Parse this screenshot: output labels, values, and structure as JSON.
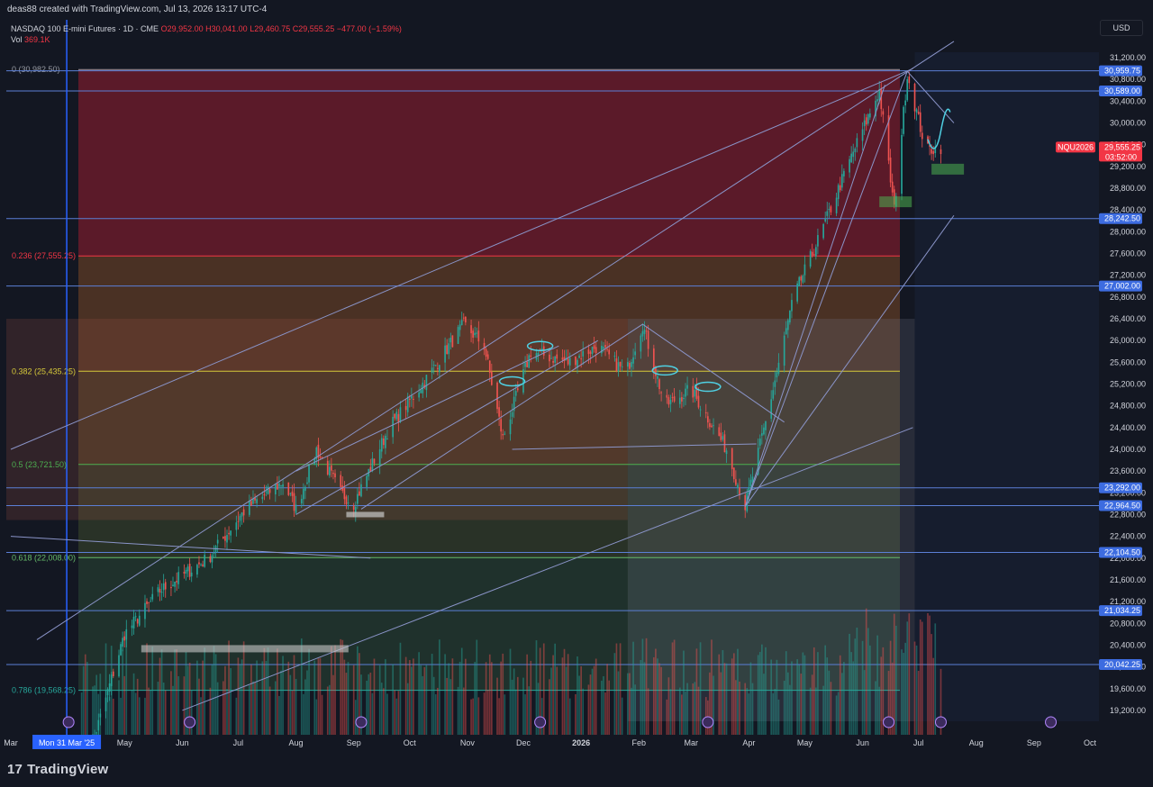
{
  "header": {
    "credit": "deas88 created with TradingView.com, Jul 13, 2026 13:17 UTC-4",
    "symbol": "NASDAQ 100 E-mini Futures · 1D · CME",
    "open": "O29,952.00",
    "high": "H30,041.00",
    "low": "L29,460.75",
    "close": "C29,555.25",
    "change": "−477.00 (−1.59%)",
    "vol_label": "Vol",
    "vol_value": "369.1K",
    "currency": "USD"
  },
  "footer": {
    "brand": "TradingView",
    "brand_mark": "17"
  },
  "colors": {
    "background": "#131722",
    "up": "#26a69a",
    "down": "#ef5350",
    "hline": "#5b7fd6",
    "trend": "#8a94c8",
    "cursor": "#2962ff",
    "annot": "#4fd0e3"
  },
  "chart_data": {
    "type": "candlestick",
    "symbol": "NQU2026",
    "last_price": "29,555.25",
    "countdown": "03:52:00",
    "x_tick_labels": [
      "Mar",
      "Mon 31 Mar '25",
      "May",
      "Jun",
      "Jul",
      "Aug",
      "Sep",
      "Oct",
      "Nov",
      "Dec",
      "2026",
      "Feb",
      "Mar",
      "Apr",
      "May",
      "Jun",
      "Jul",
      "Aug",
      "Sep",
      "Oct"
    ],
    "y_ticks": [
      31200,
      30800,
      30400,
      30000,
      29600,
      29200,
      28800,
      28400,
      28000,
      27600,
      27200,
      26800,
      26400,
      26000,
      25600,
      25200,
      24800,
      24400,
      24000,
      23600,
      23200,
      22800,
      22400,
      22000,
      21600,
      21200,
      20800,
      20400,
      20000,
      19600,
      19200
    ],
    "ylim": [
      19000,
      31400
    ],
    "price_levels": [
      {
        "value": 30959.75,
        "label": "30,959.75"
      },
      {
        "value": 30589.0,
        "label": "30,589.00"
      },
      {
        "value": 28242.5,
        "label": "28,242.50"
      },
      {
        "value": 27002.0,
        "label": "27,002.00"
      },
      {
        "value": 23292.0,
        "label": "23,292.00"
      },
      {
        "value": 22964.5,
        "label": "22,964.50"
      },
      {
        "value": 22104.5,
        "label": "22,104.50"
      },
      {
        "value": 21034.25,
        "label": "21,034.25"
      },
      {
        "value": 20042.25,
        "label": "20,042.25"
      }
    ],
    "fibonacci": [
      {
        "ratio": "0",
        "value": 30982.5,
        "label": "0 (30,982.50)",
        "color": "#9598a1"
      },
      {
        "ratio": "0.236",
        "value": 27555.25,
        "label": "0.236 (27,555.25)",
        "color": "#f23645"
      },
      {
        "ratio": "0.382",
        "value": 25435.25,
        "label": "0.382 (25,435.25)",
        "color": "#d6c93a"
      },
      {
        "ratio": "0.5",
        "value": 23721.5,
        "label": "0.5 (23,721.50)",
        "color": "#4caf50"
      },
      {
        "ratio": "0.618",
        "value": 22008.0,
        "label": "0.618 (22,008.00)",
        "color": "#66bb6a"
      },
      {
        "ratio": "0.786",
        "value": 19568.25,
        "label": "0.786 (19,568.25)",
        "color": "#26a69a"
      }
    ],
    "zigzag_close": [
      [
        "2025-04-08",
        17900
      ],
      [
        "2025-05-01",
        20600
      ],
      [
        "2025-05-20",
        21400
      ],
      [
        "2025-06-15",
        22000
      ],
      [
        "2025-07-05",
        22900
      ],
      [
        "2025-07-25",
        23400
      ],
      [
        "2025-08-01",
        22900
      ],
      [
        "2025-08-12",
        24000
      ],
      [
        "2025-08-25",
        23200
      ],
      [
        "2025-09-01",
        23000
      ],
      [
        "2025-09-20",
        24400
      ],
      [
        "2025-10-10",
        25300
      ],
      [
        "2025-10-30",
        26300
      ],
      [
        "2025-11-10",
        25900
      ],
      [
        "2025-11-20",
        24200
      ],
      [
        "2025-12-05",
        25800
      ],
      [
        "2025-12-25",
        25600
      ],
      [
        "2026-01-10",
        25900
      ],
      [
        "2026-01-25",
        25400
      ],
      [
        "2026-02-03",
        26300
      ],
      [
        "2026-02-15",
        24800
      ],
      [
        "2026-03-01",
        25100
      ],
      [
        "2026-03-20",
        24000
      ],
      [
        "2026-03-30",
        22950
      ],
      [
        "2026-04-10",
        24500
      ],
      [
        "2026-04-25",
        26800
      ],
      [
        "2026-05-10",
        28000
      ],
      [
        "2026-05-25",
        29300
      ],
      [
        "2026-06-10",
        30600
      ],
      [
        "2026-06-18",
        28400
      ],
      [
        "2026-06-25",
        30900
      ],
      [
        "2026-07-05",
        29500
      ],
      [
        "2026-07-13",
        29555
      ]
    ]
  }
}
